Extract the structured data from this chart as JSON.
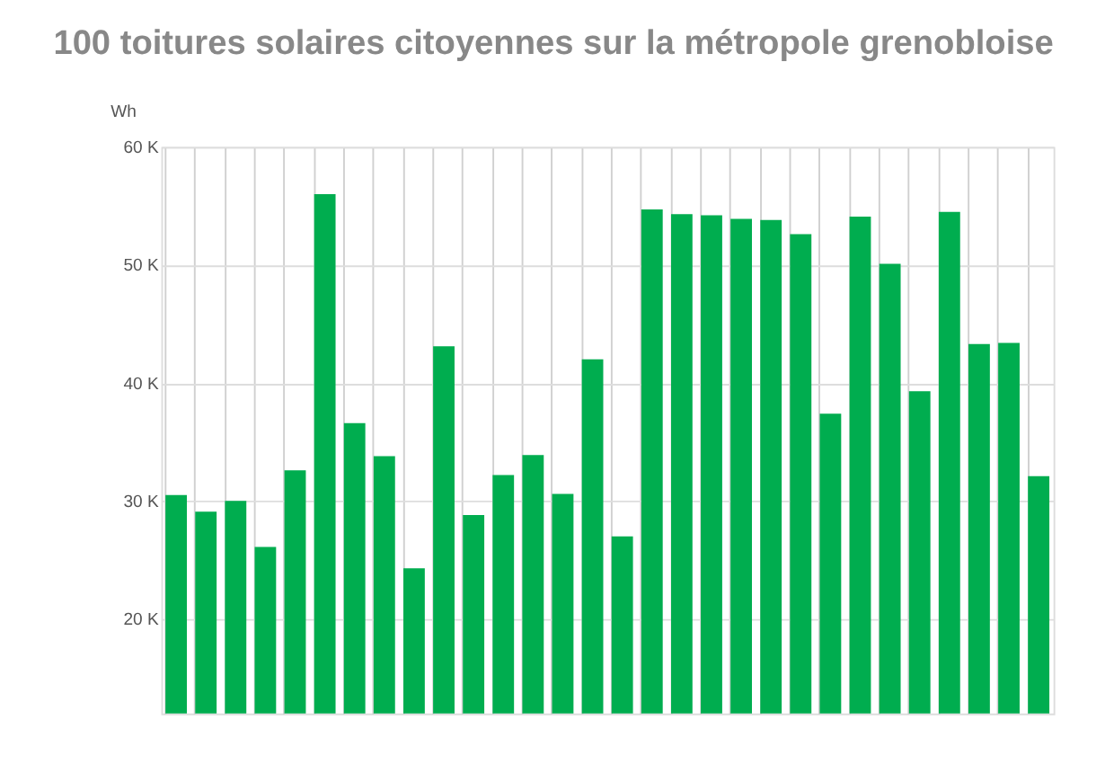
{
  "chart_data": {
    "type": "bar",
    "title": "100 toitures solaires citoyennes sur la métropole grenobloise",
    "ylabel": "Wh",
    "categories": [
      null,
      null,
      null,
      null,
      null,
      null,
      null,
      null,
      null,
      null,
      null,
      null,
      null,
      null,
      null,
      null,
      null,
      null,
      null,
      null,
      null,
      null,
      null,
      null,
      null,
      null,
      null,
      null,
      null,
      null
    ],
    "values": [
      30500,
      29100,
      30000,
      26100,
      32600,
      56000,
      36600,
      33800,
      24300,
      43100,
      28800,
      32200,
      33900,
      30600,
      42000,
      27000,
      54700,
      54300,
      54200,
      53900,
      53800,
      52600,
      37400,
      54100,
      50100,
      39300,
      54500,
      43300,
      43400,
      32100
    ],
    "color": "#00ad4f",
    "ylim": [
      12000,
      60000
    ],
    "yticks": [
      {
        "value": 20000,
        "label": "20 K"
      },
      {
        "value": 30000,
        "label": "30 K"
      },
      {
        "value": 40000,
        "label": "40 K"
      },
      {
        "value": 50000,
        "label": "50 K"
      },
      {
        "value": 60000,
        "label": "60 K"
      }
    ],
    "grid": true,
    "tick_labels": "y"
  }
}
